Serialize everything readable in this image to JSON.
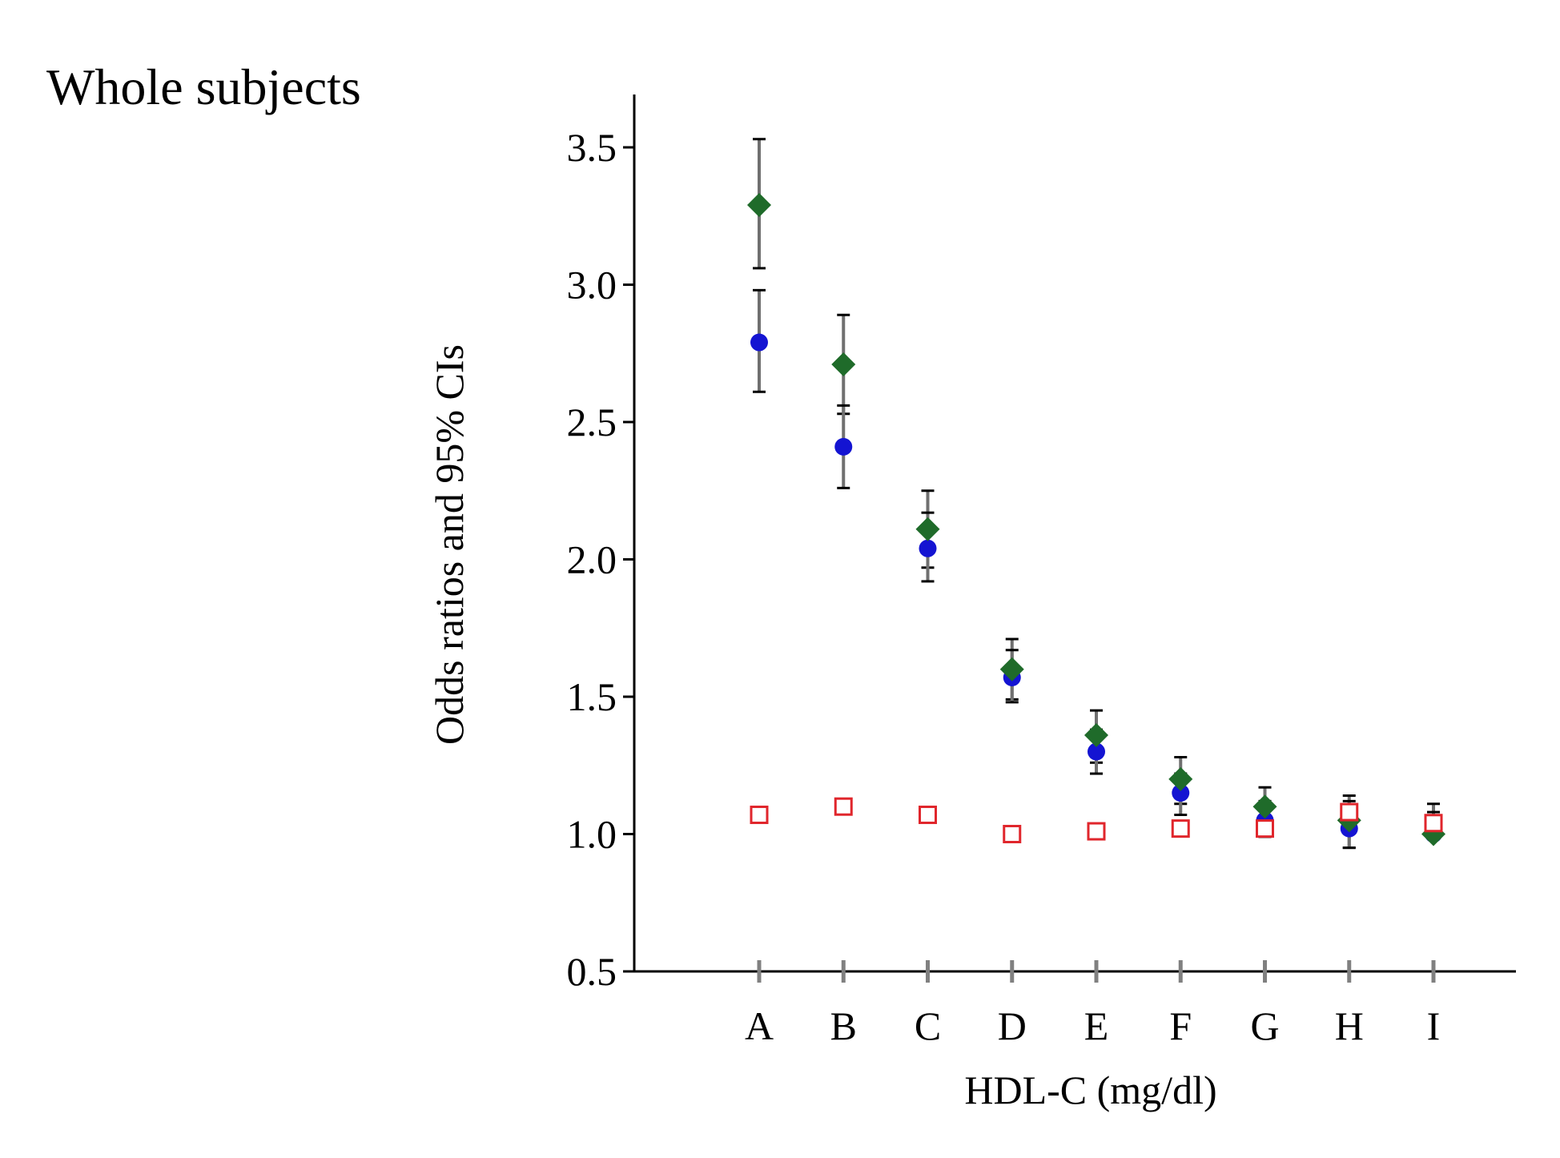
{
  "chart_data": {
    "type": "scatter",
    "title": "Whole subjects",
    "xlabel": "HDL-C (mg/dl)",
    "ylabel": "Odds ratios and 95% CIs",
    "categories": [
      "A",
      "B",
      "C",
      "D",
      "E",
      "F",
      "G",
      "H",
      "I"
    ],
    "ylim": [
      0.5,
      3.7
    ],
    "yticks": [
      0.5,
      1.0,
      1.5,
      2.0,
      2.5,
      3.0,
      3.5
    ],
    "ytick_labels": [
      "0.5",
      "1.0",
      "1.5",
      "2.0",
      "2.5",
      "3.0",
      "3.5"
    ],
    "grid": false,
    "legend": "none",
    "series": [
      {
        "name": "green-diamond",
        "marker": "diamond",
        "color": "#1f6b2a",
        "values": [
          3.29,
          2.71,
          2.11,
          1.6,
          1.36,
          1.2,
          1.1,
          1.05,
          1.0
        ],
        "ci_low": [
          3.06,
          2.53,
          1.97,
          1.49,
          1.26,
          1.11,
          1.0,
          0.95,
          1.0
        ],
        "ci_high": [
          3.53,
          2.89,
          2.25,
          1.71,
          1.45,
          1.28,
          1.17,
          1.14,
          1.11
        ]
      },
      {
        "name": "blue-circle",
        "marker": "circle",
        "color": "#1414d2",
        "values": [
          2.79,
          2.41,
          2.04,
          1.57,
          1.3,
          1.15,
          1.05,
          1.02,
          1.0
        ],
        "ci_low": [
          2.61,
          2.26,
          1.92,
          1.48,
          1.22,
          1.07,
          0.99,
          0.95,
          1.0
        ],
        "ci_high": [
          2.98,
          2.56,
          2.17,
          1.67,
          1.38,
          1.22,
          1.12,
          1.12,
          1.08
        ]
      },
      {
        "name": "red-square",
        "marker": "open-square",
        "color": "#e0262c",
        "values": [
          1.07,
          1.1,
          1.07,
          1.0,
          1.01,
          1.02,
          1.02,
          1.08,
          1.04
        ]
      }
    ]
  }
}
